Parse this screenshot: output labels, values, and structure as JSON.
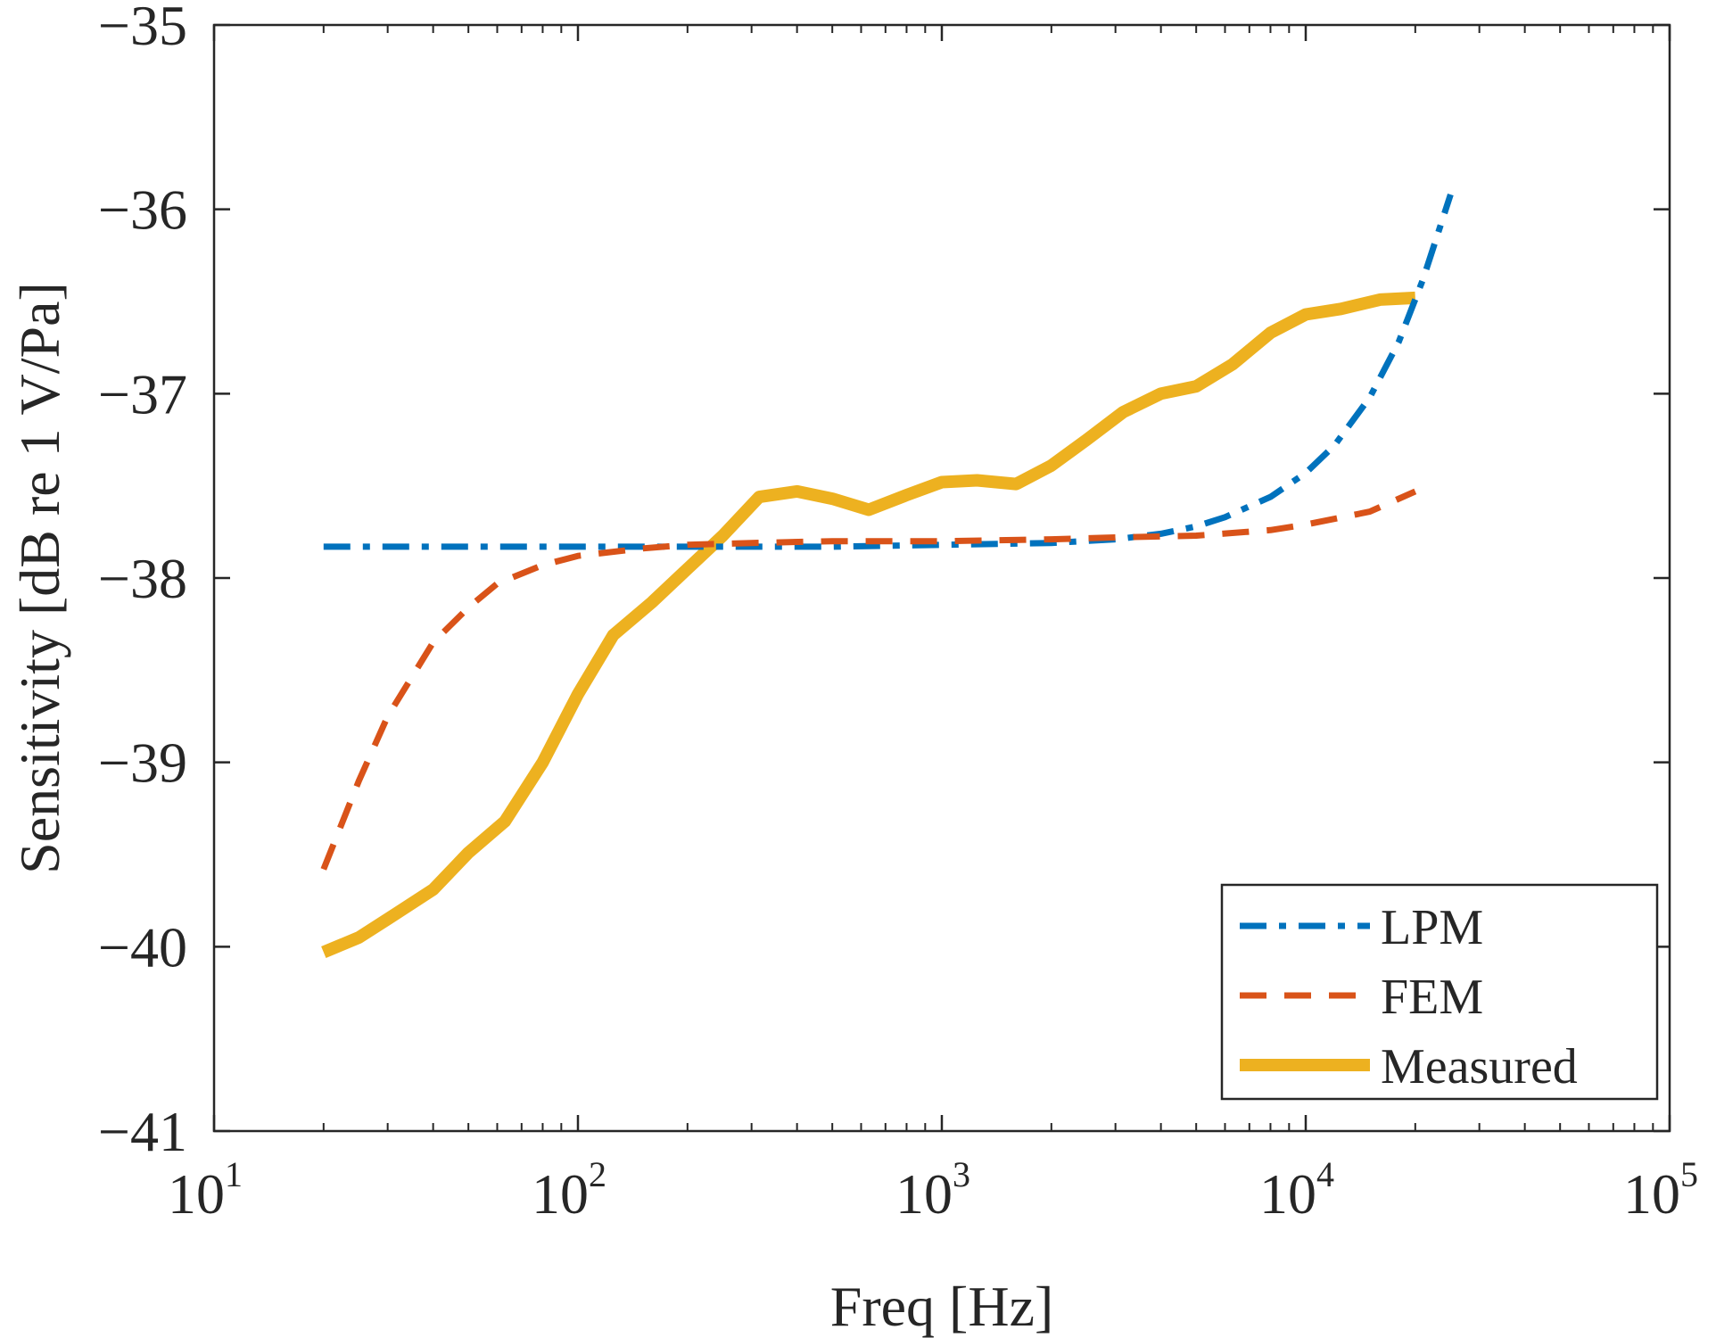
{
  "chart_data": {
    "type": "line",
    "xscale": "log",
    "xlabel": "Freq [Hz]",
    "ylabel": "Sensitivity [dB re 1 V/Pa]",
    "xlim": [
      10,
      100000
    ],
    "ylim": [
      -41,
      -35
    ],
    "x_ticks": [
      {
        "value": 10,
        "base": "10",
        "exp": "1"
      },
      {
        "value": 100,
        "base": "10",
        "exp": "2"
      },
      {
        "value": 1000,
        "base": "10",
        "exp": "3"
      },
      {
        "value": 10000,
        "base": "10",
        "exp": "4"
      },
      {
        "value": 100000,
        "base": "10",
        "exp": "5"
      }
    ],
    "y_ticks": [
      {
        "value": -41,
        "label": "−41"
      },
      {
        "value": -40,
        "label": "−40"
      },
      {
        "value": -39,
        "label": "−39"
      },
      {
        "value": -38,
        "label": "−38"
      },
      {
        "value": -37,
        "label": "−37"
      },
      {
        "value": -36,
        "label": "−36"
      },
      {
        "value": -35,
        "label": "−35"
      }
    ],
    "legend_position": "bottom-right",
    "series": [
      {
        "name": "LPM",
        "color": "#0072BD",
        "style": "dashdot",
        "x": [
          20,
          50,
          100,
          200,
          500,
          1000,
          2000,
          3000,
          4000,
          5000,
          6000,
          8000,
          10000,
          12000,
          15000,
          18000,
          21000,
          25000
        ],
        "y": [
          -37.83,
          -37.83,
          -37.83,
          -37.83,
          -37.83,
          -37.82,
          -37.81,
          -37.79,
          -37.76,
          -37.72,
          -37.67,
          -37.56,
          -37.43,
          -37.28,
          -37.02,
          -36.72,
          -36.38,
          -35.92
        ]
      },
      {
        "name": "FEM",
        "color": "#D95319",
        "style": "dashed",
        "x": [
          20,
          25,
          30,
          40,
          50,
          60,
          80,
          100,
          150,
          200,
          300,
          500,
          1000,
          2000,
          3000,
          5000,
          8000,
          10000,
          15000,
          20000
        ],
        "y": [
          -39.58,
          -39.1,
          -38.75,
          -38.35,
          -38.16,
          -38.03,
          -37.93,
          -37.88,
          -37.84,
          -37.82,
          -37.81,
          -37.8,
          -37.8,
          -37.79,
          -37.78,
          -37.77,
          -37.74,
          -37.71,
          -37.64,
          -37.53
        ]
      },
      {
        "name": "Measured",
        "color": "#EDB120",
        "style": "solid",
        "x": [
          20,
          25,
          30,
          40,
          50,
          63,
          80,
          100,
          125,
          160,
          200,
          250,
          315,
          400,
          500,
          630,
          800,
          1000,
          1250,
          1600,
          2000,
          2500,
          3150,
          4000,
          5000,
          6300,
          8000,
          10000,
          12500,
          16000,
          20000
        ],
        "y": [
          -40.03,
          -39.95,
          -39.85,
          -39.69,
          -39.49,
          -39.32,
          -39.0,
          -38.63,
          -38.31,
          -38.13,
          -37.95,
          -37.77,
          -37.56,
          -37.53,
          -37.57,
          -37.63,
          -37.55,
          -37.48,
          -37.47,
          -37.49,
          -37.39,
          -37.25,
          -37.1,
          -37.0,
          -36.96,
          -36.84,
          -36.67,
          -36.57,
          -36.54,
          -36.49,
          -36.48
        ]
      }
    ]
  }
}
